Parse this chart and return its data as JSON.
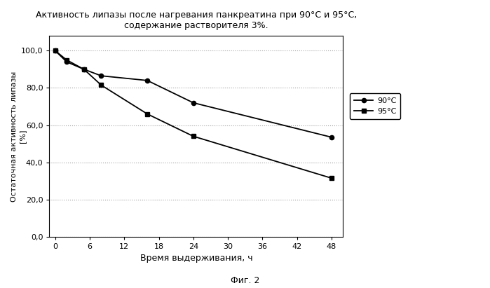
{
  "title_line1": "Активность липазы после нагревания панкреатина при 90°C и 95°C,",
  "title_line2": "содержание растворителя 3%.",
  "xlabel": "Время выдерживания, ч",
  "ylabel_top": "Остаточная активность липазы",
  "ylabel_bottom": "[%]",
  "fig_label": "Фиг. 2",
  "x_90": [
    0,
    2,
    5,
    8,
    16,
    24,
    48
  ],
  "y_90": [
    100.0,
    94.0,
    90.0,
    86.5,
    84.0,
    72.0,
    53.5
  ],
  "x_95": [
    0,
    2,
    5,
    8,
    16,
    24,
    48
  ],
  "y_95": [
    100.0,
    95.0,
    90.0,
    81.5,
    66.0,
    54.0,
    31.5
  ],
  "legend_90": "90°C",
  "legend_95": "95°C",
  "xlim": [
    -1,
    50
  ],
  "ylim": [
    0,
    108
  ],
  "xticks": [
    0,
    6,
    12,
    18,
    24,
    30,
    36,
    42,
    48
  ],
  "yticks": [
    0.0,
    20.0,
    40.0,
    60.0,
    80.0,
    100.0
  ],
  "line_color": "#000000",
  "bg_color": "#ffffff",
  "grid_color": "#999999"
}
